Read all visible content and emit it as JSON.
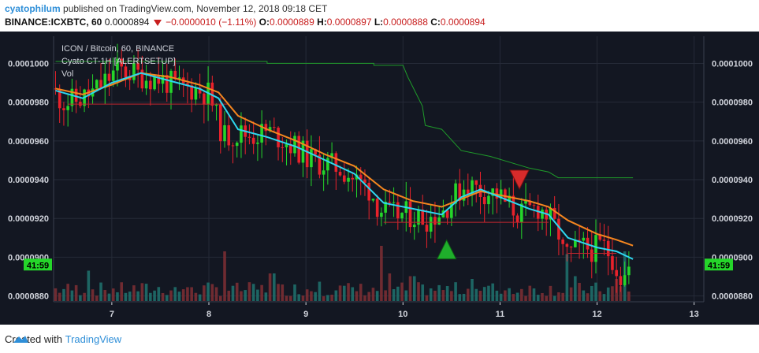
{
  "header": {
    "user": "cyatophilum",
    "publish_text": "published on TradingView.com, November 12, 2018 09:18 CET",
    "symbol": "BINANCE:ICXBTC, 60",
    "last": "0.0000894",
    "change": "−0.0000010 (−1.11%)",
    "o_label": "O:",
    "o": "0.0000889",
    "h_label": "H:",
    "h": "0.0000897",
    "l_label": "L:",
    "l": "0.0000888",
    "c_label": "C:",
    "c": "0.0000894"
  },
  "legend": {
    "title": "ICON / Bitcoin, 60, BINANCE",
    "indicator": "Cyato CT-1H [ALERTSETUP]",
    "volume": "Vol"
  },
  "price_tag": "41:59",
  "footer": {
    "created_with": "Created with",
    "brand": "TradingView"
  },
  "colors": {
    "up": "#25d62a",
    "down": "#e8222b",
    "cyan": "#2ed7f0",
    "orange": "#f5861f",
    "stop": "#1f9c2a",
    "support": "#c0262f",
    "bg": "#131722"
  },
  "chart_data": {
    "type": "candlestick",
    "x_ticks": [
      "7",
      "8",
      "9",
      "10",
      "11",
      "12",
      "13"
    ],
    "y_ticks": [
      "0.0000880",
      "0.0000900",
      "0.0000920",
      "0.0000940",
      "0.0000960",
      "0.0000980",
      "0.0001000"
    ],
    "ylim": [
      8.77e-05,
      0.0001014
    ],
    "xlim": [
      6.4,
      13.1
    ],
    "close_path": [
      [
        6.42,
        9.87e-05
      ],
      [
        6.55,
        9.8e-05
      ],
      [
        6.7,
        9.81e-05
      ],
      [
        6.85,
        9.85e-05
      ],
      [
        7.0,
        9.92e-05
      ],
      [
        7.1,
        9.97e-05
      ],
      [
        7.25,
        9.95e-05
      ],
      [
        7.4,
        9.93e-05
      ],
      [
        7.55,
        9.92e-05
      ],
      [
        7.7,
        9.88e-05
      ],
      [
        7.9,
        9.87e-05
      ],
      [
        8.05,
        9.84e-05
      ],
      [
        8.12,
        9.72e-05
      ],
      [
        8.2,
        9.62e-05
      ],
      [
        8.35,
        9.64e-05
      ],
      [
        8.5,
        9.63e-05
      ],
      [
        8.65,
        9.65e-05
      ],
      [
        8.8,
        9.61e-05
      ],
      [
        8.95,
        9.56e-05
      ],
      [
        9.1,
        9.5e-05
      ],
      [
        9.25,
        9.48e-05
      ],
      [
        9.4,
        9.46e-05
      ],
      [
        9.55,
        9.4e-05
      ],
      [
        9.7,
        9.35e-05
      ],
      [
        9.8,
        9.25e-05
      ],
      [
        9.9,
        9.22e-05
      ],
      [
        10.1,
        9.22e-05
      ],
      [
        10.3,
        9.2e-05
      ],
      [
        10.45,
        9.24e-05
      ],
      [
        10.6,
        9.33e-05
      ],
      [
        10.7,
        9.38e-05
      ],
      [
        10.85,
        9.34e-05
      ],
      [
        11.0,
        9.33e-05
      ],
      [
        11.1,
        9.28e-05
      ],
      [
        11.25,
        9.22e-05
      ],
      [
        11.35,
        9.24e-05
      ],
      [
        11.45,
        9.26e-05
      ],
      [
        11.55,
        9.2e-05
      ],
      [
        11.65,
        9.12e-05
      ],
      [
        11.7,
        9e-05
      ],
      [
        11.8,
        9.03e-05
      ],
      [
        11.9,
        9.05e-05
      ],
      [
        12.0,
        9.04e-05
      ],
      [
        12.1,
        9.06e-05
      ],
      [
        12.2,
        9e-05
      ],
      [
        12.3,
        8.88e-05
      ],
      [
        12.37,
        8.94e-05
      ]
    ],
    "cyan_ema": [
      [
        6.42,
        9.86e-05
      ],
      [
        6.7,
        9.82e-05
      ],
      [
        7.0,
        9.9e-05
      ],
      [
        7.3,
        9.95e-05
      ],
      [
        7.6,
        9.91e-05
      ],
      [
        7.9,
        9.87e-05
      ],
      [
        8.1,
        9.82e-05
      ],
      [
        8.3,
        9.66e-05
      ],
      [
        8.6,
        9.62e-05
      ],
      [
        8.9,
        9.57e-05
      ],
      [
        9.2,
        9.5e-05
      ],
      [
        9.5,
        9.43e-05
      ],
      [
        9.8,
        9.28e-05
      ],
      [
        10.1,
        9.25e-05
      ],
      [
        10.4,
        9.22e-05
      ],
      [
        10.6,
        9.31e-05
      ],
      [
        10.8,
        9.35e-05
      ],
      [
        11.0,
        9.31e-05
      ],
      [
        11.3,
        9.25e-05
      ],
      [
        11.5,
        9.22e-05
      ],
      [
        11.7,
        9.1e-05
      ],
      [
        12.0,
        9.05e-05
      ],
      [
        12.2,
        9.03e-05
      ],
      [
        12.37,
        8.99e-05
      ]
    ],
    "orange_ema": [
      [
        6.42,
        9.87e-05
      ],
      [
        6.7,
        9.84e-05
      ],
      [
        7.0,
        9.89e-05
      ],
      [
        7.3,
        9.95e-05
      ],
      [
        7.6,
        9.93e-05
      ],
      [
        7.9,
        9.89e-05
      ],
      [
        8.1,
        9.85e-05
      ],
      [
        8.3,
        9.73e-05
      ],
      [
        8.6,
        9.66e-05
      ],
      [
        8.9,
        9.6e-05
      ],
      [
        9.2,
        9.53e-05
      ],
      [
        9.5,
        9.47e-05
      ],
      [
        9.8,
        9.35e-05
      ],
      [
        10.1,
        9.29e-05
      ],
      [
        10.4,
        9.26e-05
      ],
      [
        10.6,
        9.3e-05
      ],
      [
        10.8,
        9.34e-05
      ],
      [
        11.0,
        9.32e-05
      ],
      [
        11.3,
        9.29e-05
      ],
      [
        11.5,
        9.26e-05
      ],
      [
        11.7,
        9.19e-05
      ],
      [
        12.0,
        9.12e-05
      ],
      [
        12.2,
        9.09e-05
      ],
      [
        12.37,
        9.06e-05
      ]
    ],
    "trailing_stop": [
      [
        6.42,
        0.0001001
      ],
      [
        8.6,
        0.0001001
      ],
      [
        8.6,
        0.0001
      ],
      [
        9.7,
        0.0001
      ],
      [
        9.7,
        9.99e-05
      ],
      [
        10.0,
        9.99e-05
      ],
      [
        10.05,
        9.93e-05
      ],
      [
        10.1,
        9.88e-05
      ],
      [
        10.2,
        9.78e-05
      ],
      [
        10.23,
        9.68e-05
      ],
      [
        10.4,
        9.66e-05
      ],
      [
        10.6,
        9.55e-05
      ],
      [
        10.9,
        9.52e-05
      ],
      [
        11.3,
        9.46e-05
      ],
      [
        11.5,
        9.44e-05
      ],
      [
        11.6,
        9.41e-05
      ],
      [
        12.37,
        9.41e-05
      ]
    ],
    "support_lines": [
      [
        [
          6.55,
          9.79e-05
        ],
        [
          8.2,
          9.79e-05
        ]
      ],
      [
        [
          9.8,
          9.18e-05
        ],
        [
          11.5,
          9.18e-05
        ]
      ],
      [
        [
          11.7,
          9.02e-05
        ],
        [
          12.2,
          9.02e-05
        ]
      ]
    ],
    "signals": [
      {
        "type": "buy",
        "x": 10.45,
        "y": 9.04e-05
      },
      {
        "type": "sell",
        "x": 11.2,
        "y": 9.4e-05
      }
    ],
    "volume_spikes": [
      [
        6.75,
        0.55
      ],
      [
        7.8,
        0.25
      ],
      [
        8.15,
        0.9
      ],
      [
        8.65,
        0.5
      ],
      [
        9.15,
        0.35
      ],
      [
        9.78,
        1.0
      ],
      [
        9.85,
        0.5
      ],
      [
        10.1,
        0.45
      ],
      [
        10.7,
        0.4
      ],
      [
        11.7,
        0.85
      ],
      [
        11.78,
        0.45
      ],
      [
        12.2,
        0.4
      ],
      [
        12.3,
        0.9
      ]
    ]
  }
}
